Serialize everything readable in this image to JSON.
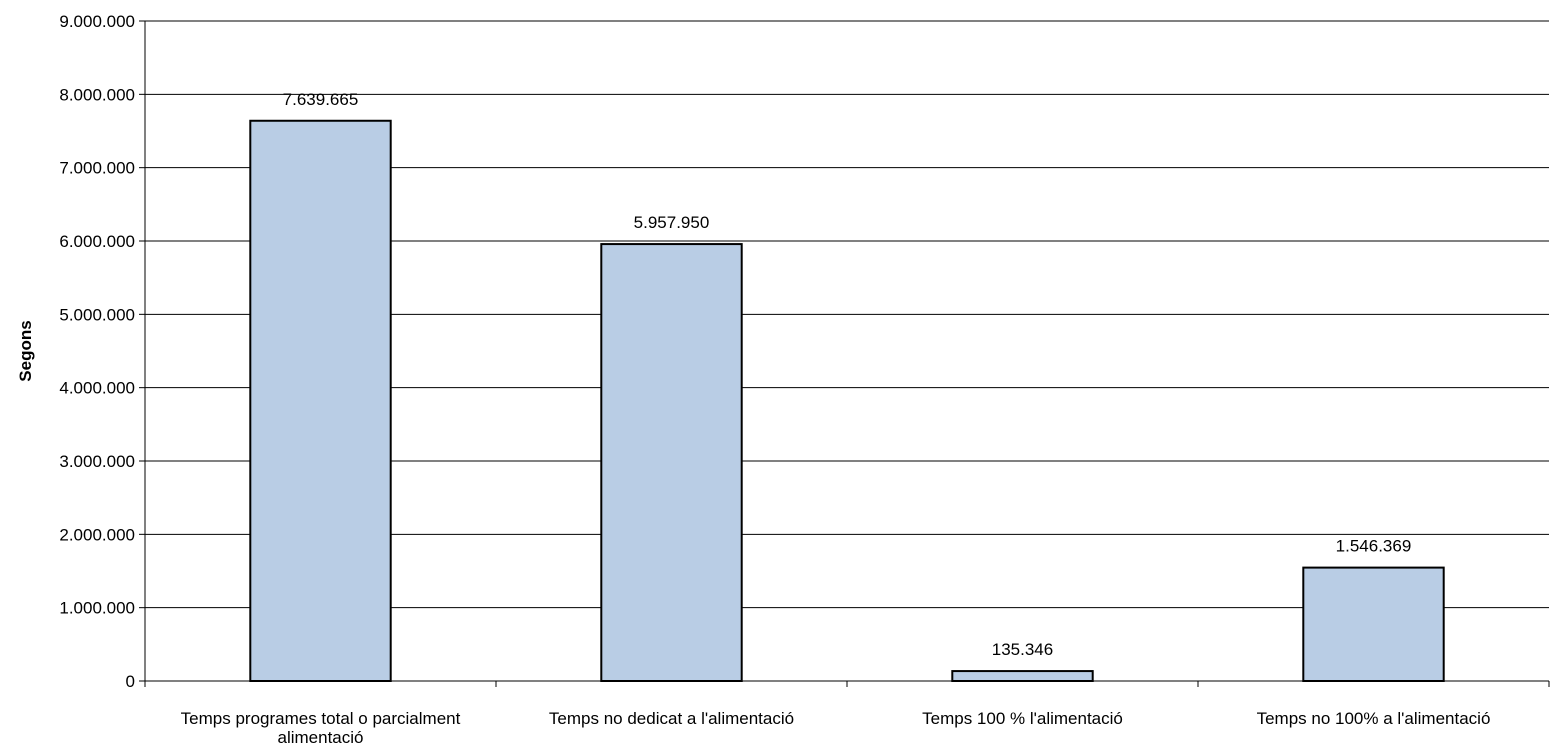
{
  "chart_data": {
    "type": "bar",
    "title": "",
    "xlabel": "",
    "ylabel": "Segons",
    "categories": [
      [
        "Temps programes total o parcialment",
        "alimentació"
      ],
      [
        "Temps no dedicat a l'alimentació"
      ],
      [
        "Temps 100 % l'alimentació"
      ],
      [
        "Temps no 100% a l'alimentació"
      ]
    ],
    "values": [
      7639665,
      5957950,
      135346,
      1546369
    ],
    "data_labels": [
      "7.639.665",
      "5.957.950",
      "135.346",
      "1.546.369"
    ],
    "ylim": [
      0,
      9000000
    ],
    "ytick_values": [
      0,
      1000000,
      2000000,
      3000000,
      4000000,
      5000000,
      6000000,
      7000000,
      8000000,
      9000000
    ],
    "ytick_labels": [
      "0",
      "1.000.000",
      "2.000.000",
      "3.000.000",
      "4.000.000",
      "5.000.000",
      "6.000.000",
      "7.000.000",
      "8.000.000",
      "9.000.000"
    ],
    "grid": true,
    "legend": "none",
    "colors": {
      "bar_fill": "#b9cde5",
      "bar_stroke": "#000000",
      "grid": "#000000",
      "axis": "#000000"
    }
  }
}
